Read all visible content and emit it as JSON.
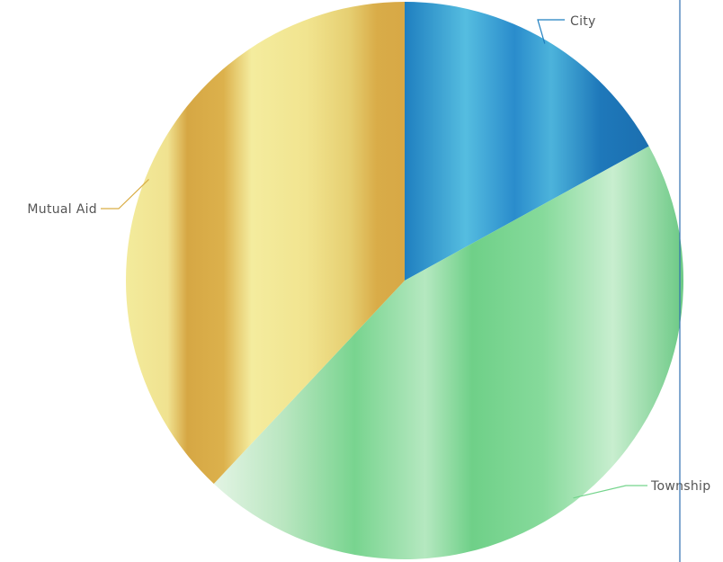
{
  "chart_data": {
    "type": "pie",
    "title": "",
    "legend": "none",
    "start_angle_deg": 0,
    "direction": "clockwise",
    "slices": [
      {
        "label": "City",
        "value": 17,
        "color": "#1f7fc0",
        "highlight": "#5cc6e6"
      },
      {
        "label": "Township",
        "value": 45,
        "color": "#74d48c",
        "highlight": "#d8f2dc"
      },
      {
        "label": "Mutual Aid",
        "value": 38,
        "color": "#d9ad45",
        "highlight": "#f5f0a6"
      }
    ]
  }
}
